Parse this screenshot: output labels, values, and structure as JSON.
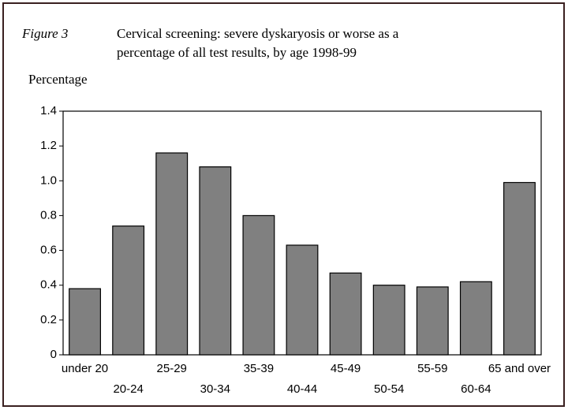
{
  "chart_data": {
    "type": "bar",
    "figure_label": "Figure 3",
    "title": [
      "Cervical screening: severe dyskaryosis or worse as a",
      "percentage of all test results, by age 1998-99"
    ],
    "y_label": "Percentage",
    "categories": [
      "under 20",
      "20-24",
      "25-29",
      "30-34",
      "35-39",
      "40-44",
      "45-49",
      "50-54",
      "55-59",
      "60-64",
      "65 and over"
    ],
    "values": [
      0.38,
      0.74,
      1.16,
      1.08,
      0.8,
      0.63,
      0.47,
      0.4,
      0.39,
      0.42,
      0.99
    ],
    "color": "#808080",
    "ylim": [
      0,
      1.4
    ],
    "yticks": [
      0,
      0.2,
      0.4,
      0.6,
      0.8,
      {
        "value": 1,
        "label": "1.0"
      },
      1.2,
      1.4
    ],
    "grid": false
  }
}
